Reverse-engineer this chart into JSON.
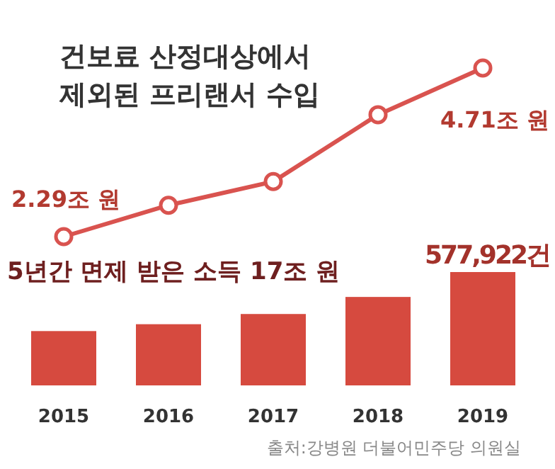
{
  "chart_data": [
    {
      "type": "line",
      "title": "건보료 산정대상에서\n제외된 프리랜서 수입",
      "values": [
        2.29,
        2.74,
        3.08,
        4.04,
        4.71
      ],
      "value_labels": [
        "2.29조 원",
        null,
        null,
        null,
        "4.71조 원"
      ],
      "color": "#d9534f",
      "marker": "circle"
    },
    {
      "type": "bar",
      "categories": [
        "2015",
        "2016",
        "2017",
        "2018",
        "2019"
      ],
      "values": [
        277000,
        312000,
        364000,
        451000,
        577922
      ],
      "value_labels": [
        null,
        null,
        null,
        null,
        "577,922건"
      ],
      "color": "#d64a3f",
      "annotations": [
        "5년간 면제 받은 소득 17조 원",
        "출처:강병원 더불어민주당 의원실"
      ]
    }
  ]
}
